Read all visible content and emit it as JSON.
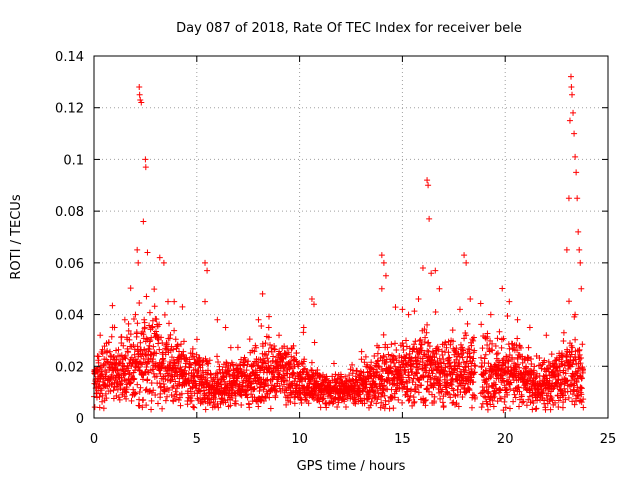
{
  "chart_data": {
    "type": "scatter",
    "title": "Day 087 of 2018, Rate Of TEC Index for receiver bele",
    "xlabel": "GPS time / hours",
    "ylabel": "ROTI / TECUs",
    "xlim": [
      0,
      25
    ],
    "ylim": [
      0,
      0.14
    ],
    "x_ticks": [
      "0",
      "5",
      "10",
      "15",
      "20",
      "25"
    ],
    "y_ticks": [
      "0",
      "0.02",
      "0.04",
      "0.06",
      "0.08",
      "0.1",
      "0.12",
      "0.14"
    ],
    "grid": true,
    "marker": "+",
    "color": "#ff0000",
    "series": [
      {
        "name": "ROTI",
        "profile": [
          {
            "t": 0.0,
            "base": 0.015,
            "spread": 0.01
          },
          {
            "t": 1.0,
            "base": 0.018,
            "spread": 0.012
          },
          {
            "t": 2.0,
            "base": 0.02,
            "spread": 0.016
          },
          {
            "t": 3.0,
            "base": 0.022,
            "spread": 0.018
          },
          {
            "t": 4.0,
            "base": 0.018,
            "spread": 0.012
          },
          {
            "t": 5.0,
            "base": 0.015,
            "spread": 0.012
          },
          {
            "t": 6.0,
            "base": 0.012,
            "spread": 0.008
          },
          {
            "t": 7.0,
            "base": 0.014,
            "spread": 0.008
          },
          {
            "t": 8.0,
            "base": 0.016,
            "spread": 0.012
          },
          {
            "t": 9.0,
            "base": 0.018,
            "spread": 0.012
          },
          {
            "t": 10.0,
            "base": 0.016,
            "spread": 0.01
          },
          {
            "t": 11.0,
            "base": 0.011,
            "spread": 0.006
          },
          {
            "t": 12.0,
            "base": 0.011,
            "spread": 0.006
          },
          {
            "t": 13.0,
            "base": 0.012,
            "spread": 0.007
          },
          {
            "t": 14.0,
            "base": 0.016,
            "spread": 0.012
          },
          {
            "t": 15.0,
            "base": 0.017,
            "spread": 0.012
          },
          {
            "t": 16.0,
            "base": 0.02,
            "spread": 0.015
          },
          {
            "t": 17.0,
            "base": 0.016,
            "spread": 0.012
          },
          {
            "t": 18.0,
            "base": 0.018,
            "spread": 0.014
          },
          {
            "t": 18.8,
            "base": 0.018,
            "spread": 0.014
          },
          {
            "t": 20.0,
            "base": 0.017,
            "spread": 0.013
          },
          {
            "t": 21.0,
            "base": 0.015,
            "spread": 0.012
          },
          {
            "t": 22.0,
            "base": 0.012,
            "spread": 0.008
          },
          {
            "t": 23.0,
            "base": 0.018,
            "spread": 0.014
          },
          {
            "t": 23.7,
            "base": 0.016,
            "spread": 0.012
          }
        ],
        "spikes": [
          {
            "x": 0.3,
            "y": 0.032
          },
          {
            "x": 1.0,
            "y": 0.035
          },
          {
            "x": 1.5,
            "y": 0.038
          },
          {
            "x": 2.1,
            "y": 0.065
          },
          {
            "x": 2.15,
            "y": 0.06
          },
          {
            "x": 2.2,
            "y": 0.128
          },
          {
            "x": 2.22,
            "y": 0.125
          },
          {
            "x": 2.25,
            "y": 0.123
          },
          {
            "x": 2.3,
            "y": 0.122
          },
          {
            "x": 2.4,
            "y": 0.076
          },
          {
            "x": 2.5,
            "y": 0.1
          },
          {
            "x": 2.52,
            "y": 0.097
          },
          {
            "x": 2.6,
            "y": 0.064
          },
          {
            "x": 2.55,
            "y": 0.047
          },
          {
            "x": 3.2,
            "y": 0.062
          },
          {
            "x": 3.4,
            "y": 0.06
          },
          {
            "x": 3.6,
            "y": 0.045
          },
          {
            "x": 3.9,
            "y": 0.045
          },
          {
            "x": 4.3,
            "y": 0.043
          },
          {
            "x": 5.4,
            "y": 0.06
          },
          {
            "x": 5.5,
            "y": 0.057
          },
          {
            "x": 5.4,
            "y": 0.045
          },
          {
            "x": 6.0,
            "y": 0.038
          },
          {
            "x": 6.4,
            "y": 0.035
          },
          {
            "x": 8.2,
            "y": 0.048
          },
          {
            "x": 8.0,
            "y": 0.038
          },
          {
            "x": 8.5,
            "y": 0.035
          },
          {
            "x": 9.0,
            "y": 0.032
          },
          {
            "x": 10.2,
            "y": 0.035
          },
          {
            "x": 10.6,
            "y": 0.046
          },
          {
            "x": 10.7,
            "y": 0.044
          },
          {
            "x": 14.0,
            "y": 0.063
          },
          {
            "x": 14.1,
            "y": 0.06
          },
          {
            "x": 14.2,
            "y": 0.055
          },
          {
            "x": 14.0,
            "y": 0.05
          },
          {
            "x": 15.0,
            "y": 0.042
          },
          {
            "x": 15.3,
            "y": 0.04
          },
          {
            "x": 16.0,
            "y": 0.058
          },
          {
            "x": 16.2,
            "y": 0.092
          },
          {
            "x": 16.25,
            "y": 0.09
          },
          {
            "x": 16.3,
            "y": 0.077
          },
          {
            "x": 16.4,
            "y": 0.056
          },
          {
            "x": 16.6,
            "y": 0.057
          },
          {
            "x": 16.8,
            "y": 0.05
          },
          {
            "x": 17.8,
            "y": 0.042
          },
          {
            "x": 18.0,
            "y": 0.063
          },
          {
            "x": 18.1,
            "y": 0.06
          },
          {
            "x": 18.3,
            "y": 0.046
          },
          {
            "x": 19.3,
            "y": 0.04
          },
          {
            "x": 20.2,
            "y": 0.045
          },
          {
            "x": 20.6,
            "y": 0.038
          },
          {
            "x": 21.2,
            "y": 0.035
          },
          {
            "x": 22.0,
            "y": 0.032
          },
          {
            "x": 23.0,
            "y": 0.065
          },
          {
            "x": 23.1,
            "y": 0.085
          },
          {
            "x": 23.15,
            "y": 0.115
          },
          {
            "x": 23.2,
            "y": 0.132
          },
          {
            "x": 23.22,
            "y": 0.128
          },
          {
            "x": 23.25,
            "y": 0.125
          },
          {
            "x": 23.3,
            "y": 0.118
          },
          {
            "x": 23.35,
            "y": 0.11
          },
          {
            "x": 23.4,
            "y": 0.101
          },
          {
            "x": 23.45,
            "y": 0.095
          },
          {
            "x": 23.5,
            "y": 0.085
          },
          {
            "x": 23.55,
            "y": 0.072
          },
          {
            "x": 23.6,
            "y": 0.065
          },
          {
            "x": 23.65,
            "y": 0.06
          },
          {
            "x": 23.7,
            "y": 0.05
          },
          {
            "x": 23.4,
            "y": 0.04
          }
        ]
      }
    ]
  }
}
